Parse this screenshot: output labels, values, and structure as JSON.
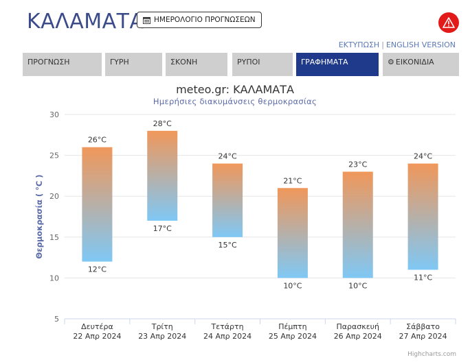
{
  "header": {
    "city": "ΚΑΛΑΜΑΤΑ",
    "calendar_button": "ΗΜΕΡΟΛΟΓΙΟ ΠΡΟΓΝΩΣΕΩΝ",
    "print_link": "ΕΚΤΥΠΩΣΗ",
    "separator": "|",
    "english_link": "ENGLISH VERSION",
    "warning_icon": "warning-triangle-icon"
  },
  "tabs": [
    {
      "label": "ΠΡΟΓΝΩΣΗ",
      "active": false
    },
    {
      "label": "ΓΥΡΗ",
      "active": false
    },
    {
      "label": "ΣΚΟΝΗ",
      "active": false
    },
    {
      "label": "ΡΥΠΟΙ",
      "active": false
    },
    {
      "label": "ΓΡΑΦΗΜΑΤΑ",
      "active": true
    },
    {
      "label": "ΕΙΚΟΝΙΔΙΑ",
      "active": false,
      "icon": "gear-icon"
    }
  ],
  "colors": {
    "accent": "#1f3a8a",
    "title_blue": "#3a4a8a",
    "warning_red": "#e21a1a",
    "bar_top": "#f0975a",
    "bar_bottom": "#7fc8f5"
  },
  "chart_data": {
    "type": "columnrange",
    "title": "meteo.gr: ΚΑΛΑΜΑΤΑ",
    "subtitle": "Ημερήσιες διακυμάνσεις θερμοκρασίας",
    "ylabel": "Θερμοκρασία ( °C )",
    "ylim": [
      5,
      30
    ],
    "yticks": [
      5,
      10,
      15,
      20,
      25,
      30
    ],
    "grid": true,
    "unit": "°C",
    "categories": [
      {
        "day": "Δευτέρα",
        "date": "22 Απρ 2024"
      },
      {
        "day": "Τρίτη",
        "date": "23 Απρ 2024"
      },
      {
        "day": "Τετάρτη",
        "date": "24 Απρ 2024"
      },
      {
        "day": "Πέμπτη",
        "date": "25 Απρ 2024"
      },
      {
        "day": "Παρασκευή",
        "date": "26 Απρ 2024"
      },
      {
        "day": "Σάββατο",
        "date": "27 Απρ 2024"
      }
    ],
    "low": [
      12,
      17,
      15,
      10,
      10,
      11
    ],
    "high": [
      26,
      28,
      24,
      21,
      23,
      24
    ]
  },
  "credits": "Highcharts.com"
}
